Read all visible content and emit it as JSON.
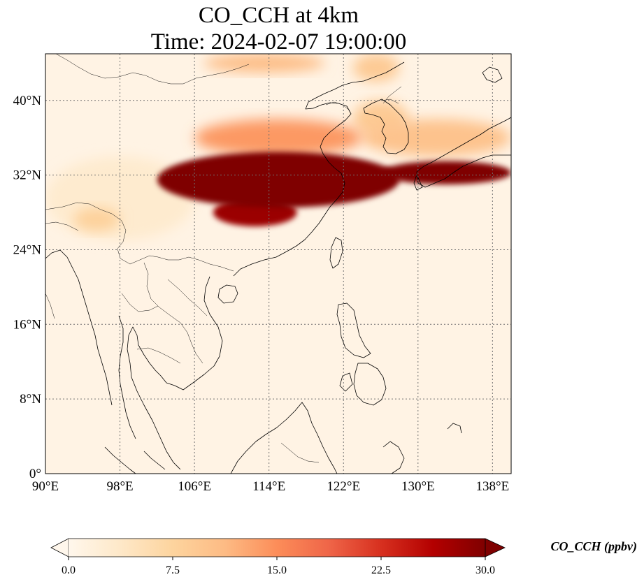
{
  "title": {
    "line1": "CO_CCH at 4km",
    "line2": "Time: 2024-02-07 19:00:00"
  },
  "map": {
    "projection": "PlateCarree",
    "extent": {
      "lon_min": 90,
      "lon_max": 140,
      "lat_min": 0,
      "lat_max": 45
    },
    "gridlines": "dotted",
    "xticks": [
      {
        "value": 90,
        "label": "90°E"
      },
      {
        "value": 98,
        "label": "98°E"
      },
      {
        "value": 106,
        "label": "106°E"
      },
      {
        "value": 114,
        "label": "114°E"
      },
      {
        "value": 122,
        "label": "122°E"
      },
      {
        "value": 130,
        "label": "130°E"
      },
      {
        "value": 138,
        "label": "138°E"
      }
    ],
    "yticks": [
      {
        "value": 0,
        "label": "0°"
      },
      {
        "value": 8,
        "label": "8°N"
      },
      {
        "value": 16,
        "label": "16°N"
      },
      {
        "value": 24,
        "label": "24°N"
      },
      {
        "value": 32,
        "label": "32°N"
      },
      {
        "value": 40,
        "label": "40°N"
      }
    ],
    "background_color": "#fff3e4",
    "plume_regions": [
      {
        "name": "main-core",
        "lon": [
          102,
          128
        ],
        "lat": [
          28.5,
          34.5
        ],
        "value": 30
      },
      {
        "name": "east-tail",
        "lon": [
          126,
          140
        ],
        "lat": [
          31,
          33.5
        ],
        "value": 30
      },
      {
        "name": "south-lobe",
        "lon": [
          108,
          117
        ],
        "lat": [
          26.5,
          29.5
        ],
        "value": 28
      },
      {
        "name": "north-band",
        "lon": [
          106,
          124
        ],
        "lat": [
          34,
          38
        ],
        "value": 14
      },
      {
        "name": "northeast-band",
        "lon": [
          124,
          140
        ],
        "lat": [
          34,
          38
        ],
        "value": 10
      },
      {
        "name": "korea-blob",
        "lon": [
          123,
          129
        ],
        "lat": [
          36,
          40
        ],
        "value": 9
      },
      {
        "name": "top-streak",
        "lon": [
          107,
          120
        ],
        "lat": [
          43,
          45
        ],
        "value": 11
      },
      {
        "name": "top-right-streak",
        "lon": [
          123,
          128
        ],
        "lat": [
          42,
          45
        ],
        "value": 9
      },
      {
        "name": "india-patch",
        "lon": [
          93,
          98
        ],
        "lat": [
          26,
          28.5
        ],
        "value": 8
      },
      {
        "name": "west-haze",
        "lon": [
          90,
          106
        ],
        "lat": [
          25,
          34
        ],
        "value": 3
      }
    ]
  },
  "colorbar": {
    "colormap": "OrRd",
    "min": 0,
    "max": 30,
    "extend": "both",
    "ticks": [
      {
        "value": 0,
        "label": "0.0"
      },
      {
        "value": 7.5,
        "label": "7.5"
      },
      {
        "value": 15,
        "label": "15.0"
      },
      {
        "value": 22.5,
        "label": "22.5"
      },
      {
        "value": 30,
        "label": "30.0"
      }
    ],
    "label": "CO_CCH (ppbv)",
    "colors": [
      "#fff7ec",
      "#fee8c8",
      "#fdd49e",
      "#fdbb84",
      "#fc8d59",
      "#ef6548",
      "#d7301f",
      "#b30000",
      "#7f0000"
    ]
  }
}
